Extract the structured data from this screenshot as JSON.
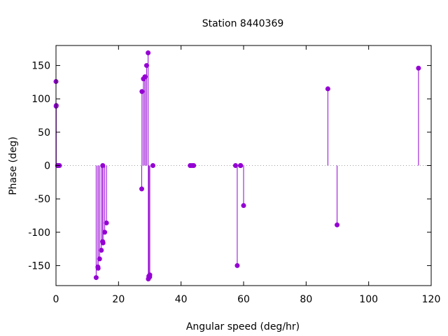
{
  "chart_data": {
    "type": "scatter",
    "style": "impulses-with-points",
    "title": "Station 8440369",
    "xlabel": "Angular speed (deg/hr)",
    "ylabel": "Phase (deg)",
    "xlim": [
      0,
      120
    ],
    "ylim": [
      -180,
      180
    ],
    "xticks": [
      0,
      20,
      40,
      60,
      80,
      100,
      120
    ],
    "yticks": [
      -150,
      -100,
      -50,
      0,
      50,
      100,
      150
    ],
    "grid": false,
    "zero_line": true,
    "series_color": "#9400d3",
    "zero_line_color": "#a0a0a4",
    "points": [
      {
        "x": 0.0,
        "y": 126
      },
      {
        "x": 0.04,
        "y": 89
      },
      {
        "x": 0.08,
        "y": 90
      },
      {
        "x": 0.5,
        "y": 0
      },
      {
        "x": 0.55,
        "y": 0
      },
      {
        "x": 1.1,
        "y": 0
      },
      {
        "x": 12.85,
        "y": -168
      },
      {
        "x": 13.4,
        "y": -152
      },
      {
        "x": 13.47,
        "y": -154
      },
      {
        "x": 13.94,
        "y": -140
      },
      {
        "x": 14.5,
        "y": -127
      },
      {
        "x": 14.92,
        "y": -114
      },
      {
        "x": 14.96,
        "y": 0
      },
      {
        "x": 15.04,
        "y": -116
      },
      {
        "x": 15.58,
        "y": -100
      },
      {
        "x": 16.14,
        "y": -86
      },
      {
        "x": 27.42,
        "y": -35
      },
      {
        "x": 27.5,
        "y": 111
      },
      {
        "x": 27.97,
        "y": 130
      },
      {
        "x": 28.44,
        "y": 133
      },
      {
        "x": 28.51,
        "y": 133
      },
      {
        "x": 28.98,
        "y": 150
      },
      {
        "x": 29.46,
        "y": 169
      },
      {
        "x": 29.53,
        "y": -170
      },
      {
        "x": 29.7,
        "y": -166
      },
      {
        "x": 29.96,
        "y": -167
      },
      {
        "x": 30.0,
        "y": -164
      },
      {
        "x": 31.0,
        "y": 0
      },
      {
        "x": 42.93,
        "y": 0
      },
      {
        "x": 43.48,
        "y": 0
      },
      {
        "x": 44.03,
        "y": 0
      },
      {
        "x": 57.42,
        "y": 0
      },
      {
        "x": 57.97,
        "y": -150
      },
      {
        "x": 58.98,
        "y": 0
      },
      {
        "x": 59.07,
        "y": 0
      },
      {
        "x": 60.0,
        "y": -60
      },
      {
        "x": 86.95,
        "y": 115
      },
      {
        "x": 89.9,
        "y": -89
      },
      {
        "x": 115.94,
        "y": 146
      }
    ]
  }
}
